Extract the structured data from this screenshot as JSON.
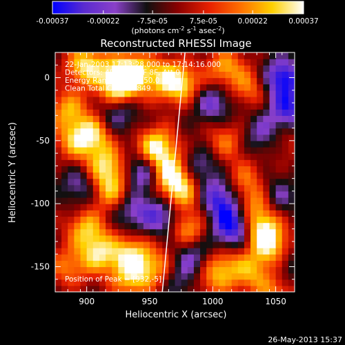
{
  "colorbar": {
    "ticks": [
      "-0.00037",
      "-0.00022",
      "-7.5e-05",
      "7.5e-05",
      "0.00022",
      "0.00037"
    ],
    "unit_main": "(photons cm",
    "unit_exp1": "-2",
    "unit_mid": " s",
    "unit_exp2": "-1",
    "unit_mid2": " asec",
    "unit_exp3": "-2",
    "unit_close": ")"
  },
  "chart_data": {
    "type": "heatmap",
    "title": "Reconstructed RHESSI Image",
    "xlabel": "Heliocentric X (arcsec)",
    "ylabel": "Heliocentric Y (arcsec)",
    "xlim": [
      875,
      1065
    ],
    "ylim": [
      -170,
      20
    ],
    "x_ticks": [
      900,
      950,
      1000,
      1050
    ],
    "y_ticks": [
      0,
      -50,
      -100,
      -150
    ],
    "color_range": [
      -0.00037,
      0.00037
    ],
    "colormap": [
      "#0000ff",
      "#5a2bd0",
      "#8a40c8",
      "#101010",
      "#8b0000",
      "#e82000",
      "#ff7000",
      "#ffd000",
      "#ffffff"
    ],
    "annotations": [
      "22-Jan-2003 17:13:28.000 to 17:14:16.000",
      "Detectors: 4F 5F 6F 7F 8F, Att 0",
      "Energy Range: 25.0 - 50.0 keV",
      "Clean    Total Counts: 849."
    ],
    "peak_label": "Position of Peak = [932,-5]",
    "limb_line": [
      [
        960,
        -170
      ],
      [
        978,
        20
      ]
    ],
    "blobs": [
      {
        "x": 900,
        "y": 10,
        "v": 0.00035
      },
      {
        "x": 925,
        "y": -5,
        "v": 0.0004
      },
      {
        "x": 935,
        "y": 5,
        "v": 0.00036
      },
      {
        "x": 960,
        "y": 0,
        "v": 0.00025
      },
      {
        "x": 975,
        "y": -5,
        "v": 0.0003
      },
      {
        "x": 1010,
        "y": 8,
        "v": 0.00025
      },
      {
        "x": 1030,
        "y": -8,
        "v": 0.0002
      },
      {
        "x": 885,
        "y": -25,
        "v": 0.00025
      },
      {
        "x": 890,
        "y": -50,
        "v": 0.00022
      },
      {
        "x": 905,
        "y": -45,
        "v": 0.0003
      },
      {
        "x": 915,
        "y": -70,
        "v": 0.00032
      },
      {
        "x": 920,
        "y": -90,
        "v": 0.00028
      },
      {
        "x": 955,
        "y": -55,
        "v": 0.00038
      },
      {
        "x": 965,
        "y": -75,
        "v": 0.00035
      },
      {
        "x": 975,
        "y": -90,
        "v": 0.0003
      },
      {
        "x": 980,
        "y": -120,
        "v": 0.00028
      },
      {
        "x": 1010,
        "y": -50,
        "v": 0.0002
      },
      {
        "x": 1025,
        "y": -80,
        "v": 0.00018
      },
      {
        "x": 1035,
        "y": -100,
        "v": 0.00025
      },
      {
        "x": 1040,
        "y": -120,
        "v": 0.00032
      },
      {
        "x": 1045,
        "y": -135,
        "v": 0.00028
      },
      {
        "x": 1030,
        "y": -155,
        "v": 0.00022
      },
      {
        "x": 1010,
        "y": -145,
        "v": 0.00022
      },
      {
        "x": 900,
        "y": -120,
        "v": 0.00028
      },
      {
        "x": 910,
        "y": -140,
        "v": 0.0003
      },
      {
        "x": 885,
        "y": -150,
        "v": 0.0002
      },
      {
        "x": 935,
        "y": -140,
        "v": 0.0003
      },
      {
        "x": 935,
        "y": -160,
        "v": 0.00026
      },
      {
        "x": 955,
        "y": -150,
        "v": 0.00022
      },
      {
        "x": 1000,
        "y": -160,
        "v": 0.0002
      },
      {
        "x": 1050,
        "y": -170,
        "v": 0.0002
      },
      {
        "x": 1055,
        "y": -50,
        "v": 0.00012
      },
      {
        "x": 1000,
        "y": -20,
        "v": -0.00022
      },
      {
        "x": 1055,
        "y": 0,
        "v": -0.00035
      },
      {
        "x": 1060,
        "y": -25,
        "v": -0.00028
      },
      {
        "x": 1040,
        "y": -45,
        "v": -0.0002
      },
      {
        "x": 990,
        "y": -70,
        "v": -0.00018
      },
      {
        "x": 1005,
        "y": -95,
        "v": -0.00028
      },
      {
        "x": 945,
        "y": -75,
        "v": -0.00028
      },
      {
        "x": 935,
        "y": -105,
        "v": -0.0002
      },
      {
        "x": 960,
        "y": -110,
        "v": -0.00026
      },
      {
        "x": 1015,
        "y": -115,
        "v": -0.0003
      },
      {
        "x": 1050,
        "y": -95,
        "v": -0.0002
      },
      {
        "x": 985,
        "y": -140,
        "v": -0.0002
      },
      {
        "x": 895,
        "y": -85,
        "v": -0.00018
      },
      {
        "x": 925,
        "y": -30,
        "v": -0.00018
      },
      {
        "x": 1015,
        "y": -130,
        "v": -0.00014
      },
      {
        "x": 975,
        "y": -160,
        "v": -0.00014
      },
      {
        "x": 1060,
        "y": -150,
        "v": -0.00012
      }
    ]
  },
  "footer_date": "26-May-2013 15:37"
}
